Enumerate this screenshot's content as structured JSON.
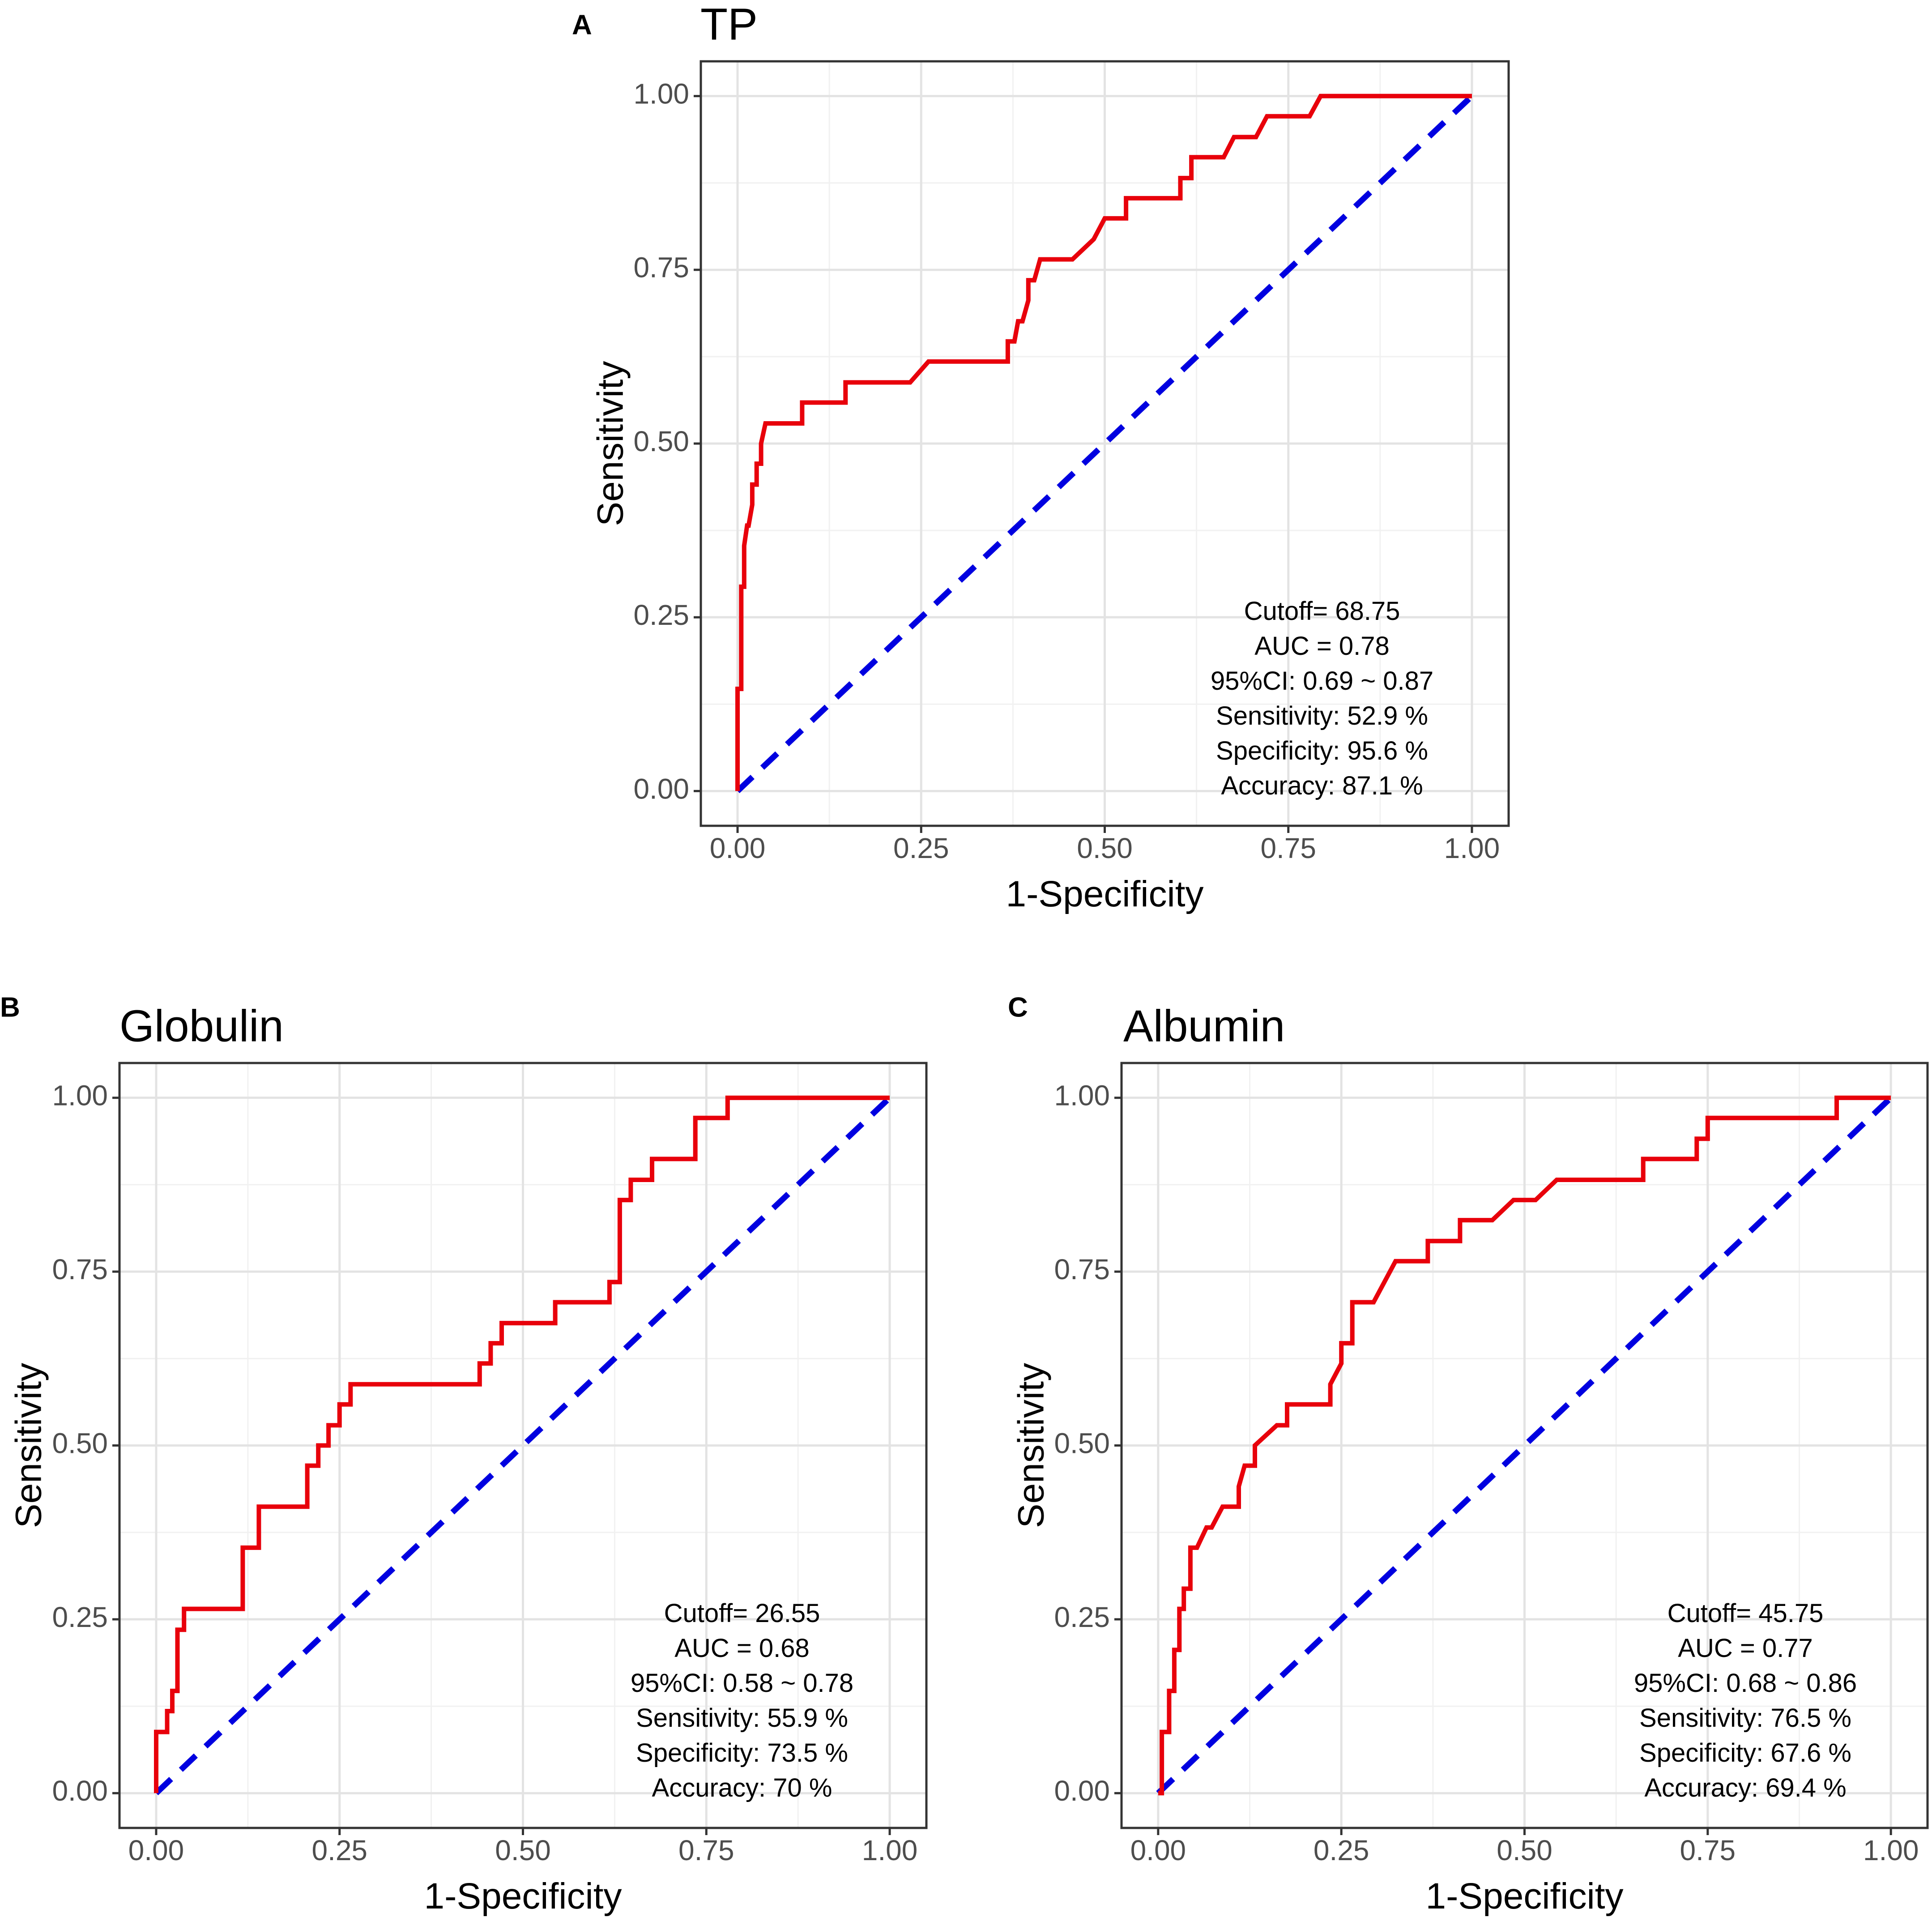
{
  "colors": {
    "roc": "#e8000b",
    "diagonal": "#0000e0",
    "grid": "#e3e3e3",
    "frame": "#333333"
  },
  "chart_data": [
    {
      "type": "line",
      "panel": "A",
      "title": "TP",
      "xlabel": "1-Specificity",
      "ylabel": "Sensitivity",
      "xlim": [
        0,
        1
      ],
      "ylim": [
        0,
        1
      ],
      "xticks": [
        0,
        0.25,
        0.5,
        0.75,
        1
      ],
      "yticks": [
        0,
        0.25,
        0.5,
        0.75,
        1
      ],
      "xtick_labels": [
        "0.00",
        "0.25",
        "0.50",
        "0.75",
        "1.00"
      ],
      "ytick_labels": [
        "0.00",
        "0.25",
        "0.50",
        "0.75",
        "1.00"
      ],
      "grid": true,
      "stats_lines": [
        "Cutoff= 68.75",
        "AUC =  0.78",
        "95%CI: 0.69 ~ 0.87",
        "Sensitivity: 52.9 %",
        "Specificity: 95.6 %",
        "Accuracy: 87.1 %"
      ],
      "series": [
        {
          "name": "ROC",
          "x": [
            0.0,
            0.0,
            0.005,
            0.005,
            0.009,
            0.009,
            0.013,
            0.015,
            0.02,
            0.02,
            0.026,
            0.026,
            0.032,
            0.032,
            0.038,
            0.044,
            0.088,
            0.088,
            0.147,
            0.147,
            0.235,
            0.26,
            0.368,
            0.368,
            0.377,
            0.382,
            0.388,
            0.396,
            0.396,
            0.404,
            0.412,
            0.412,
            0.456,
            0.485,
            0.5,
            0.521,
            0.529,
            0.529,
            0.603,
            0.603,
            0.618,
            0.618,
            0.662,
            0.676,
            0.706,
            0.721,
            0.721,
            0.779,
            0.794,
            1.0
          ],
          "y": [
            0.0,
            0.147,
            0.147,
            0.294,
            0.294,
            0.353,
            0.382,
            0.382,
            0.412,
            0.441,
            0.441,
            0.471,
            0.471,
            0.5,
            0.529,
            0.529,
            0.529,
            0.559,
            0.559,
            0.588,
            0.588,
            0.618,
            0.618,
            0.647,
            0.647,
            0.676,
            0.676,
            0.706,
            0.735,
            0.735,
            0.765,
            0.765,
            0.765,
            0.794,
            0.824,
            0.824,
            0.824,
            0.853,
            0.853,
            0.882,
            0.882,
            0.912,
            0.912,
            0.941,
            0.941,
            0.971,
            0.971,
            0.971,
            1.0,
            1.0
          ]
        },
        {
          "name": "Reference",
          "x": [
            0,
            1
          ],
          "y": [
            0,
            1
          ]
        }
      ]
    },
    {
      "type": "line",
      "panel": "B",
      "title": "Globulin",
      "xlabel": "1-Specificity",
      "ylabel": "Sensitivity",
      "xlim": [
        0,
        1
      ],
      "ylim": [
        0,
        1
      ],
      "xticks": [
        0,
        0.25,
        0.5,
        0.75,
        1
      ],
      "yticks": [
        0,
        0.25,
        0.5,
        0.75,
        1
      ],
      "xtick_labels": [
        "0.00",
        "0.25",
        "0.50",
        "0.75",
        "1.00"
      ],
      "ytick_labels": [
        "0.00",
        "0.25",
        "0.50",
        "0.75",
        "1.00"
      ],
      "grid": true,
      "stats_lines": [
        "Cutoff= 26.55",
        "AUC =  0.68",
        "95%CI: 0.58 ~ 0.78",
        "Sensitivity: 55.9 %",
        "Specificity: 73.5 %",
        "Accuracy: 70 %"
      ],
      "series": [
        {
          "name": "ROC",
          "x": [
            0.0,
            0.0,
            0.015,
            0.015,
            0.022,
            0.022,
            0.029,
            0.029,
            0.038,
            0.038,
            0.044,
            0.044,
            0.118,
            0.118,
            0.14,
            0.14,
            0.206,
            0.206,
            0.221,
            0.221,
            0.235,
            0.235,
            0.25,
            0.25,
            0.265,
            0.265,
            0.294,
            0.294,
            0.441,
            0.441,
            0.456,
            0.456,
            0.471,
            0.471,
            0.544,
            0.544,
            0.618,
            0.618,
            0.632,
            0.632,
            0.647,
            0.647,
            0.676,
            0.676,
            0.735,
            0.735,
            0.779,
            0.779,
            1.0
          ],
          "y": [
            0.0,
            0.088,
            0.088,
            0.118,
            0.118,
            0.147,
            0.147,
            0.235,
            0.235,
            0.265,
            0.265,
            0.265,
            0.265,
            0.353,
            0.353,
            0.412,
            0.412,
            0.471,
            0.471,
            0.5,
            0.5,
            0.529,
            0.529,
            0.559,
            0.559,
            0.588,
            0.588,
            0.588,
            0.588,
            0.618,
            0.618,
            0.647,
            0.647,
            0.676,
            0.676,
            0.706,
            0.706,
            0.735,
            0.735,
            0.853,
            0.853,
            0.882,
            0.882,
            0.912,
            0.912,
            0.971,
            0.971,
            1.0,
            1.0
          ]
        },
        {
          "name": "Reference",
          "x": [
            0,
            1
          ],
          "y": [
            0,
            1
          ]
        }
      ]
    },
    {
      "type": "line",
      "panel": "C",
      "title": "Albumin",
      "xlabel": "1-Specificity",
      "ylabel": "Sensitivity",
      "xlim": [
        0,
        1
      ],
      "ylim": [
        0,
        1
      ],
      "xticks": [
        0,
        0.25,
        0.5,
        0.75,
        1
      ],
      "yticks": [
        0,
        0.25,
        0.5,
        0.75,
        1
      ],
      "xtick_labels": [
        "0.00",
        "0.25",
        "0.50",
        "0.75",
        "1.00"
      ],
      "ytick_labels": [
        "0.00",
        "0.25",
        "0.50",
        "0.75",
        "1.00"
      ],
      "grid": true,
      "stats_lines": [
        "Cutoff= 45.75",
        "AUC =  0.77",
        "95%CI: 0.68 ~ 0.86",
        "Sensitivity: 76.5 %",
        "Specificity: 67.6 %",
        "Accuracy: 69.4 %"
      ],
      "series": [
        {
          "name": "ROC",
          "x": [
            0.0,
            0.005,
            0.005,
            0.015,
            0.015,
            0.022,
            0.022,
            0.029,
            0.029,
            0.035,
            0.035,
            0.044,
            0.044,
            0.053,
            0.066,
            0.073,
            0.088,
            0.11,
            0.11,
            0.118,
            0.132,
            0.132,
            0.162,
            0.176,
            0.176,
            0.191,
            0.235,
            0.235,
            0.25,
            0.25,
            0.265,
            0.265,
            0.294,
            0.324,
            0.368,
            0.368,
            0.382,
            0.382,
            0.412,
            0.412,
            0.441,
            0.456,
            0.485,
            0.515,
            0.544,
            0.662,
            0.662,
            0.735,
            0.735,
            0.75,
            0.75,
            0.926,
            0.926,
            0.941,
            1.0
          ],
          "y": [
            0.0,
            0.0,
            0.088,
            0.088,
            0.147,
            0.147,
            0.206,
            0.206,
            0.265,
            0.265,
            0.294,
            0.294,
            0.353,
            0.353,
            0.382,
            0.382,
            0.412,
            0.412,
            0.441,
            0.471,
            0.471,
            0.5,
            0.529,
            0.529,
            0.559,
            0.559,
            0.559,
            0.588,
            0.618,
            0.647,
            0.647,
            0.706,
            0.706,
            0.765,
            0.765,
            0.794,
            0.794,
            0.794,
            0.794,
            0.824,
            0.824,
            0.824,
            0.853,
            0.853,
            0.882,
            0.882,
            0.912,
            0.912,
            0.941,
            0.941,
            0.971,
            0.971,
            1.0,
            1.0,
            1.0
          ]
        },
        {
          "name": "Reference",
          "x": [
            0,
            1
          ],
          "y": [
            0,
            1
          ]
        }
      ]
    }
  ]
}
